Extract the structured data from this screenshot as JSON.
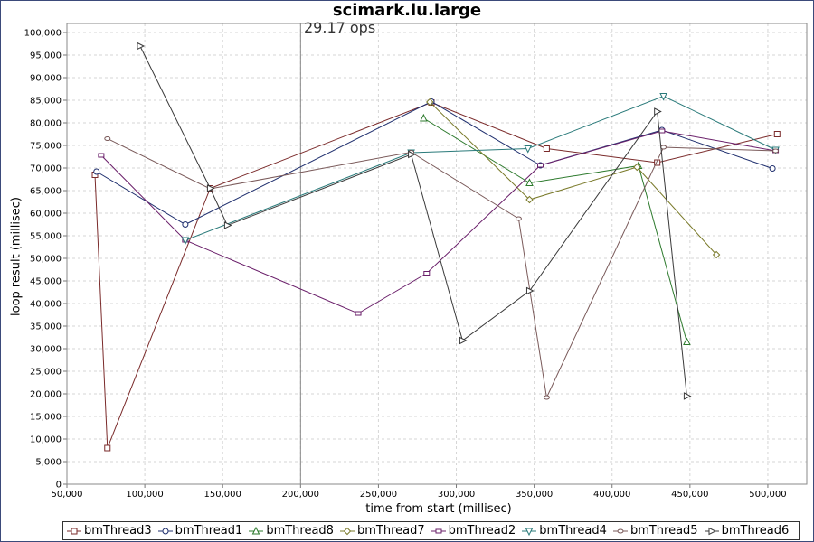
{
  "chart_data": {
    "type": "line",
    "title": "scimark.lu.large",
    "xlabel": "time from start (millisec)",
    "ylabel": "loop result (millisec)",
    "xlim": [
      50000,
      525000
    ],
    "ylim": [
      0,
      102000
    ],
    "xticks": [
      50000,
      100000,
      150000,
      200000,
      250000,
      300000,
      350000,
      400000,
      450000,
      500000
    ],
    "yticks": [
      0,
      5000,
      10000,
      15000,
      20000,
      25000,
      30000,
      35000,
      40000,
      45000,
      50000,
      55000,
      60000,
      65000,
      70000,
      75000,
      80000,
      85000,
      90000,
      95000,
      100000
    ],
    "xtick_labels": [
      "50,000",
      "100,000",
      "150,000",
      "200,000",
      "250,000",
      "300,000",
      "350,000",
      "400,000",
      "450,000",
      "500,000"
    ],
    "ytick_labels": [
      "0",
      "5,000",
      "10,000",
      "15,000",
      "20,000",
      "25,000",
      "30,000",
      "35,000",
      "40,000",
      "45,000",
      "50,000",
      "55,000",
      "60,000",
      "65,000",
      "70,000",
      "75,000",
      "80,000",
      "85,000",
      "90,000",
      "95,000",
      "100,000"
    ],
    "grid": true,
    "legend_position": "bottom",
    "vline": {
      "x": 200000,
      "label": "29.17 ops"
    },
    "series": [
      {
        "name": "bmThread3",
        "color": "#7a2a2a",
        "marker": "square",
        "x": [
          68000,
          76000,
          142000,
          284000,
          358000,
          429000,
          506000
        ],
        "y": [
          68500,
          8000,
          65500,
          84500,
          74300,
          71200,
          77500
        ]
      },
      {
        "name": "bmThread1",
        "color": "#1f2f6e",
        "marker": "circle",
        "x": [
          69000,
          126000,
          284000,
          354000,
          432000,
          503000
        ],
        "y": [
          69200,
          57500,
          84700,
          70600,
          78400,
          69900
        ]
      },
      {
        "name": "bmThread8",
        "color": "#2d7a2d",
        "marker": "triangle-up",
        "x": [
          279000,
          347000,
          417000,
          448000
        ],
        "y": [
          81000,
          66700,
          70500,
          31500
        ]
      },
      {
        "name": "bmThread7",
        "color": "#7a7a2a",
        "marker": "diamond",
        "x": [
          283000,
          347000,
          416000,
          467000
        ],
        "y": [
          84600,
          63000,
          70200,
          50800
        ]
      },
      {
        "name": "bmThread2",
        "color": "#6a1f6a",
        "marker": "rect-h",
        "x": [
          72000,
          126000,
          237000,
          281000,
          354000,
          432000,
          505000
        ],
        "y": [
          72800,
          54000,
          37800,
          46700,
          70600,
          78200,
          73800
        ]
      },
      {
        "name": "bmThread4",
        "color": "#2a7a7a",
        "marker": "triangle-down",
        "x": [
          126000,
          271000,
          346000,
          433000,
          505000
        ],
        "y": [
          54000,
          73400,
          74300,
          85900,
          74000
        ]
      },
      {
        "name": "bmThread5",
        "color": "#7a5a5a",
        "marker": "ellipse",
        "x": [
          76000,
          142000,
          271000,
          340000,
          358000,
          433000,
          505000
        ],
        "y": [
          76500,
          65400,
          73500,
          58800,
          19200,
          74600,
          73800
        ]
      },
      {
        "name": "bmThread6",
        "color": "#3a3a3a",
        "marker": "triangle-right",
        "x": [
          97000,
          142000,
          153000,
          271000,
          304000,
          347000,
          429000,
          448000
        ],
        "y": [
          97000,
          65500,
          57300,
          73000,
          31800,
          42800,
          82500,
          19500
        ]
      }
    ]
  }
}
